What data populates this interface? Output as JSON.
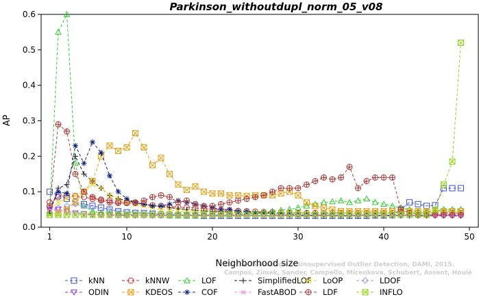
{
  "chart_data": {
    "type": "line",
    "title": "Parkinson_withoutdupl_norm_05_v08",
    "xlabel": "Neighborhood size",
    "ylabel": "AP",
    "xlim": [
      0,
      50
    ],
    "ylim": [
      0,
      0.6
    ],
    "xticks": [
      "1",
      "10",
      "20",
      "30",
      "40",
      "50"
    ],
    "yticks": [
      "0.0",
      "0.1",
      "0.2",
      "0.3",
      "0.4",
      "0.5",
      "0.6"
    ],
    "grid": false,
    "legend_position": "bottom",
    "watermark": [
      "Campos, Zimek, Sander, Campello, Micenkova, Schubert, Assent, Houle",
      "On the Evaluation of Unsupervised Outlier Detection, DAMI, 2015."
    ],
    "series": [
      {
        "name": "kNN",
        "color": "#3b4fd9",
        "marker": "square",
        "values": [
          0.1,
          0.09,
          0.08,
          0.07,
          0.065,
          0.06,
          0.055,
          0.05,
          0.045,
          0.042,
          0.04,
          0.04,
          0.038,
          0.036,
          0.035,
          0.034,
          0.033,
          0.033,
          0.032,
          0.032,
          0.032,
          0.032,
          0.032,
          0.032,
          0.032,
          0.032,
          0.032,
          0.032,
          0.032,
          0.032,
          0.032,
          0.032,
          0.032,
          0.032,
          0.032,
          0.032,
          0.032,
          0.032,
          0.033,
          0.033,
          0.034,
          0.05,
          0.07,
          0.065,
          0.06,
          0.062,
          0.11,
          0.11,
          0.11
        ]
      },
      {
        "name": "kNNW",
        "color": "#d12a2a",
        "marker": "circle",
        "values": [
          0.07,
          0.085,
          0.09,
          0.088,
          0.085,
          0.08,
          0.078,
          0.075,
          0.072,
          0.07,
          0.068,
          0.065,
          0.062,
          0.06,
          0.058,
          0.056,
          0.055,
          0.054,
          0.052,
          0.05,
          0.048,
          0.047,
          0.046,
          0.045,
          0.044,
          0.043,
          0.042,
          0.041,
          0.04,
          0.04,
          0.04,
          0.04,
          0.04,
          0.04,
          0.04,
          0.04,
          0.04,
          0.04,
          0.04,
          0.04,
          0.04,
          0.04,
          0.04,
          0.04,
          0.04,
          0.04,
          0.04,
          0.04,
          0.04
        ]
      },
      {
        "name": "LOF",
        "color": "#2ecc2e",
        "marker": "triangle-up",
        "values": [
          0.04,
          0.55,
          0.6,
          0.18,
          0.06,
          0.045,
          0.04,
          0.04,
          0.038,
          0.036,
          0.035,
          0.034,
          0.033,
          0.033,
          0.032,
          0.032,
          0.032,
          0.032,
          0.033,
          0.034,
          0.035,
          0.036,
          0.037,
          0.038,
          0.04,
          0.042,
          0.045,
          0.048,
          0.05,
          0.055,
          0.06,
          0.065,
          0.07,
          0.072,
          0.075,
          0.07,
          0.075,
          0.08,
          0.07,
          0.065,
          0.06,
          0.055,
          0.05,
          0.045,
          0.045,
          0.045,
          0.05,
          0.05,
          0.05
        ]
      },
      {
        "name": "SimplifiedLOF",
        "color": "#111111",
        "marker": "plus",
        "values": [
          0.04,
          0.11,
          0.12,
          0.2,
          0.15,
          0.13,
          0.11,
          0.09,
          0.08,
          0.075,
          0.07,
          0.065,
          0.06,
          0.058,
          0.055,
          0.052,
          0.05,
          0.048,
          0.046,
          0.045,
          0.044,
          0.043,
          0.042,
          0.041,
          0.04,
          0.04,
          0.04,
          0.04,
          0.04,
          0.04,
          0.04,
          0.04,
          0.04,
          0.04,
          0.04,
          0.04,
          0.04,
          0.04,
          0.04,
          0.04,
          0.04,
          0.04,
          0.04,
          0.04,
          0.04,
          0.04,
          0.04,
          0.04,
          0.04
        ]
      },
      {
        "name": "LoOP",
        "color": "#e8d21a",
        "marker": "x",
        "values": [
          0.05,
          0.07,
          0.08,
          0.09,
          0.1,
          0.12,
          0.11,
          0.09,
          0.08,
          0.07,
          0.065,
          0.06,
          0.055,
          0.05,
          0.048,
          0.046,
          0.045,
          0.044,
          0.043,
          0.042,
          0.041,
          0.04,
          0.04,
          0.04,
          0.04,
          0.04,
          0.04,
          0.04,
          0.04,
          0.04,
          0.04,
          0.04,
          0.04,
          0.04,
          0.04,
          0.04,
          0.04,
          0.04,
          0.04,
          0.04,
          0.04,
          0.04,
          0.04,
          0.04,
          0.04,
          0.04,
          0.04,
          0.04,
          0.04
        ]
      },
      {
        "name": "LDOF",
        "color": "#8f9fe6",
        "marker": "diamond",
        "values": [
          0.05,
          0.055,
          0.06,
          0.065,
          0.06,
          0.055,
          0.05,
          0.048,
          0.045,
          0.043,
          0.042,
          0.04,
          0.04,
          0.039,
          0.038,
          0.037,
          0.036,
          0.036,
          0.035,
          0.035,
          0.035,
          0.035,
          0.035,
          0.035,
          0.035,
          0.035,
          0.035,
          0.035,
          0.035,
          0.035,
          0.035,
          0.035,
          0.035,
          0.035,
          0.035,
          0.035,
          0.035,
          0.035,
          0.035,
          0.035,
          0.035,
          0.035,
          0.035,
          0.035,
          0.035,
          0.035,
          0.035,
          0.035,
          0.035
        ]
      },
      {
        "name": "ODIN",
        "color": "#8e2fd6",
        "marker": "triangle-down",
        "values": [
          0.05,
          0.05,
          0.045,
          0.04,
          0.038,
          0.036,
          0.035,
          0.034,
          0.034,
          0.033,
          0.033,
          0.033,
          0.033,
          0.033,
          0.033,
          0.033,
          0.033,
          0.033,
          0.033,
          0.033,
          0.033,
          0.033,
          0.033,
          0.033,
          0.033,
          0.033,
          0.033,
          0.033,
          0.033,
          0.033,
          0.033,
          0.033,
          0.033,
          0.033,
          0.033,
          0.033,
          0.033,
          0.033,
          0.033,
          0.033,
          0.033,
          0.033,
          0.033,
          0.033,
          0.033,
          0.033,
          0.033,
          0.033,
          0.033
        ]
      },
      {
        "name": "KDEOS",
        "color": "#e6a21a",
        "marker": "square-x",
        "values": [
          0.035,
          0.04,
          0.05,
          0.07,
          0.1,
          0.13,
          0.2,
          0.23,
          0.215,
          0.225,
          0.265,
          0.225,
          0.175,
          0.195,
          0.15,
          0.12,
          0.105,
          0.115,
          0.1,
          0.095,
          0.095,
          0.09,
          0.09,
          0.088,
          0.09,
          0.09,
          0.09,
          0.095,
          0.1,
          0.09,
          0.07,
          0.06,
          0.055,
          0.05,
          0.045,
          0.045,
          0.045,
          0.045,
          0.045,
          0.045,
          0.045,
          0.045,
          0.045,
          0.045,
          0.045,
          0.045,
          0.045,
          0.045,
          0.045
        ]
      },
      {
        "name": "COF",
        "color": "#0b1f7a",
        "marker": "asterisk",
        "values": [
          0.05,
          0.1,
          0.095,
          0.23,
          0.18,
          0.24,
          0.21,
          0.145,
          0.1,
          0.08,
          0.07,
          0.065,
          0.06,
          0.06,
          0.065,
          0.075,
          0.07,
          0.065,
          0.06,
          0.055,
          0.05,
          0.05,
          0.045,
          0.045,
          0.04,
          0.04,
          0.04,
          0.038,
          0.036,
          0.035,
          0.034,
          0.033,
          0.032,
          0.032,
          0.032,
          0.032,
          0.032,
          0.032,
          0.032,
          0.032,
          0.032,
          0.032,
          0.032,
          0.032,
          0.032,
          0.032,
          0.032,
          0.032,
          0.032
        ]
      },
      {
        "name": "FastABOD",
        "color": "#f28ad6",
        "marker": "star",
        "values": [
          0.05,
          0.045,
          0.04,
          0.035,
          0.035,
          0.034,
          0.033,
          0.033,
          0.032,
          0.032,
          0.032,
          0.032,
          0.032,
          0.032,
          0.032,
          0.032,
          0.032,
          0.032,
          0.032,
          0.032,
          0.032,
          0.032,
          0.032,
          0.032,
          0.032,
          0.032,
          0.032,
          0.032,
          0.032,
          0.032,
          0.032,
          0.032,
          0.032,
          0.032,
          0.032,
          0.032,
          0.032,
          0.032,
          0.032,
          0.032,
          0.032,
          0.032,
          0.032,
          0.032,
          0.032,
          0.032,
          0.032,
          0.032,
          0.032
        ]
      },
      {
        "name": "LDF",
        "color": "#a83a3a",
        "marker": "circle-plus",
        "values": [
          0.06,
          0.29,
          0.27,
          0.15,
          0.1,
          0.085,
          0.075,
          0.07,
          0.068,
          0.068,
          0.07,
          0.075,
          0.085,
          0.09,
          0.085,
          0.07,
          0.075,
          0.065,
          0.06,
          0.06,
          0.065,
          0.07,
          0.075,
          0.08,
          0.085,
          0.09,
          0.1,
          0.11,
          0.11,
          0.11,
          0.12,
          0.13,
          0.14,
          0.135,
          0.14,
          0.17,
          0.11,
          0.13,
          0.14,
          0.14,
          0.14,
          0.05,
          0.04,
          0.035,
          0.035,
          0.035,
          0.035,
          0.035,
          0.035
        ]
      },
      {
        "name": "INFLO",
        "color": "#8fd61a",
        "marker": "square-x",
        "values": [
          0.035,
          0.035,
          0.035,
          0.035,
          0.035,
          0.035,
          0.035,
          0.035,
          0.035,
          0.035,
          0.035,
          0.035,
          0.035,
          0.035,
          0.035,
          0.035,
          0.035,
          0.035,
          0.035,
          0.035,
          0.035,
          0.035,
          0.035,
          0.035,
          0.035,
          0.035,
          0.035,
          0.035,
          0.035,
          0.035,
          0.035,
          0.035,
          0.035,
          0.035,
          0.035,
          0.035,
          0.035,
          0.035,
          0.035,
          0.035,
          0.035,
          0.035,
          0.035,
          0.035,
          0.035,
          0.05,
          0.12,
          0.185,
          0.52
        ]
      }
    ]
  }
}
